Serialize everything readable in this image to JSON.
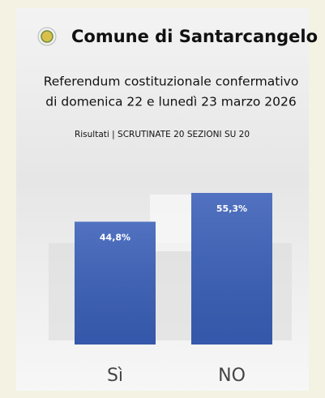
{
  "chart_data": {
    "type": "bar",
    "title": "Comune di Santarcangelo",
    "subtitle_lines": [
      "Referendum costituzionale confermativo",
      "di domenica 22 e lunedì 23 marzo 2026"
    ],
    "note": "Risultati | SCRUTINATE 20 SEZIONI SU 20",
    "categories": [
      "Sì",
      "NO"
    ],
    "values": [
      44.8,
      55.3
    ],
    "value_labels": [
      "44,8%",
      "55,3%"
    ],
    "color": "#3a5fb8"
  }
}
